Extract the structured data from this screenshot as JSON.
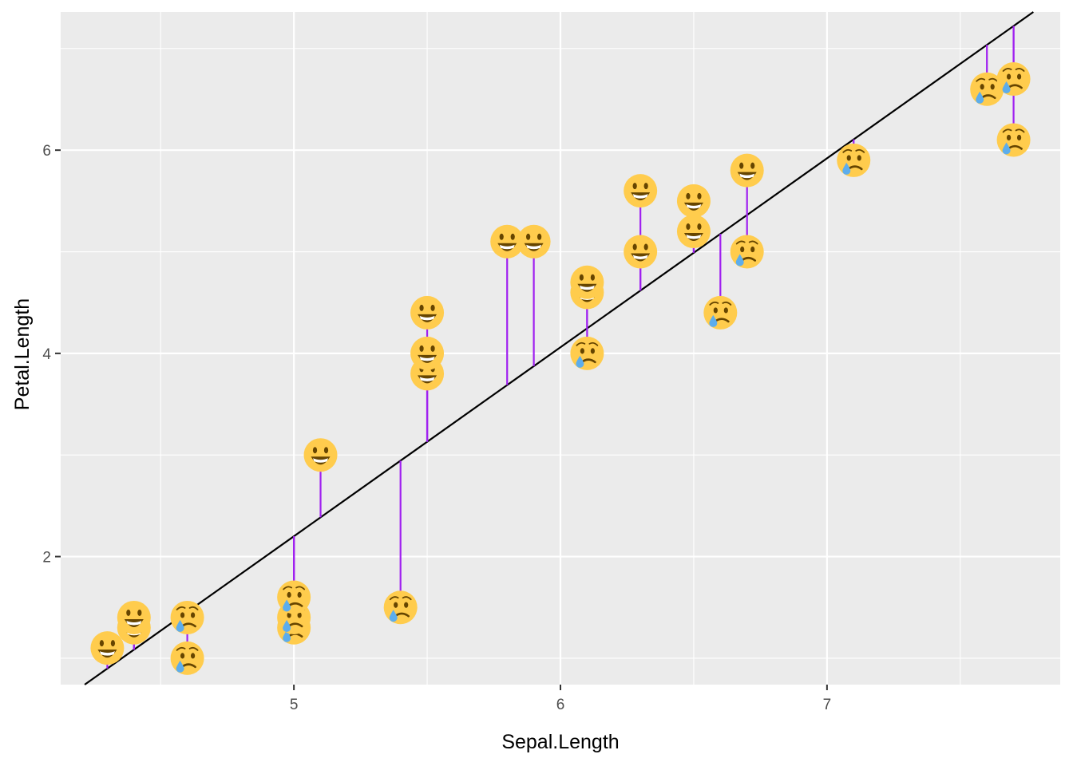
{
  "chart_data": {
    "type": "scatter",
    "xlabel": "Sepal.Length",
    "ylabel": "Petal.Length",
    "xlim": [
      4.125,
      7.875
    ],
    "ylim": [
      0.74,
      7.36
    ],
    "x_ticks": [
      5,
      6,
      7
    ],
    "y_ticks": [
      2,
      4,
      6
    ],
    "grid": true,
    "fit_line": {
      "intercept": -7.1,
      "slope": 1.86
    },
    "colors": {
      "panel": "#ebebeb",
      "grid": "#ffffff",
      "residual": "#a020f0",
      "fit_line": "#000000",
      "face": "#ffcc4d",
      "feature": "#664500",
      "tear": "#5dadec"
    },
    "marker_icons": {
      "above": "grinning-face-icon",
      "below": "crying-face-icon"
    },
    "points": [
      {
        "x": 4.3,
        "y": 1.1
      },
      {
        "x": 4.4,
        "y": 1.3
      },
      {
        "x": 4.4,
        "y": 1.4
      },
      {
        "x": 4.6,
        "y": 1.0
      },
      {
        "x": 4.6,
        "y": 1.4
      },
      {
        "x": 5.0,
        "y": 1.3
      },
      {
        "x": 5.0,
        "y": 1.4
      },
      {
        "x": 5.0,
        "y": 1.6
      },
      {
        "x": 5.1,
        "y": 3.0
      },
      {
        "x": 5.4,
        "y": 1.5
      },
      {
        "x": 5.5,
        "y": 3.8
      },
      {
        "x": 5.5,
        "y": 4.0
      },
      {
        "x": 5.5,
        "y": 4.4
      },
      {
        "x": 5.8,
        "y": 5.1
      },
      {
        "x": 5.9,
        "y": 5.1
      },
      {
        "x": 6.1,
        "y": 4.0
      },
      {
        "x": 6.1,
        "y": 4.6
      },
      {
        "x": 6.1,
        "y": 4.7
      },
      {
        "x": 6.3,
        "y": 5.0
      },
      {
        "x": 6.3,
        "y": 5.6
      },
      {
        "x": 6.5,
        "y": 5.2
      },
      {
        "x": 6.5,
        "y": 5.5
      },
      {
        "x": 6.6,
        "y": 4.4
      },
      {
        "x": 6.7,
        "y": 5.0
      },
      {
        "x": 6.7,
        "y": 5.8
      },
      {
        "x": 7.1,
        "y": 5.9
      },
      {
        "x": 7.6,
        "y": 6.6
      },
      {
        "x": 7.7,
        "y": 6.1
      },
      {
        "x": 7.7,
        "y": 6.7
      }
    ]
  }
}
